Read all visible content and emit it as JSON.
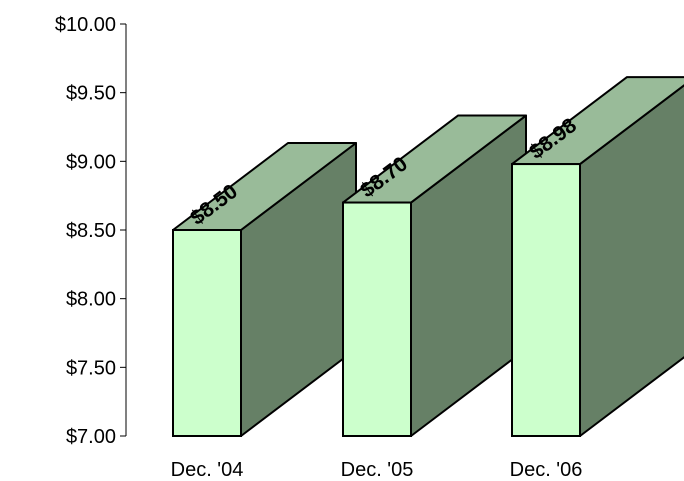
{
  "chart_data": {
    "type": "bar",
    "categories": [
      "Dec. '04",
      "Dec. '05",
      "Dec. '06"
    ],
    "values": [
      8.5,
      8.7,
      8.98
    ],
    "data_labels": [
      "$8.50",
      "$8.70",
      "$8.98"
    ],
    "ylim": [
      7.0,
      10.0
    ],
    "yticks": [
      10.0,
      9.5,
      9.0,
      8.5,
      8.0,
      7.5,
      7.0
    ],
    "ytick_labels": [
      "$10.00",
      "$9.50",
      "$9.00",
      "$8.50",
      "$8.00",
      "$7.50",
      "$7.00"
    ],
    "grid": false,
    "legend": false,
    "colors": {
      "front": "#ccffcc",
      "top": "#99bb99",
      "side": "#668066",
      "edge": "#000000"
    }
  }
}
